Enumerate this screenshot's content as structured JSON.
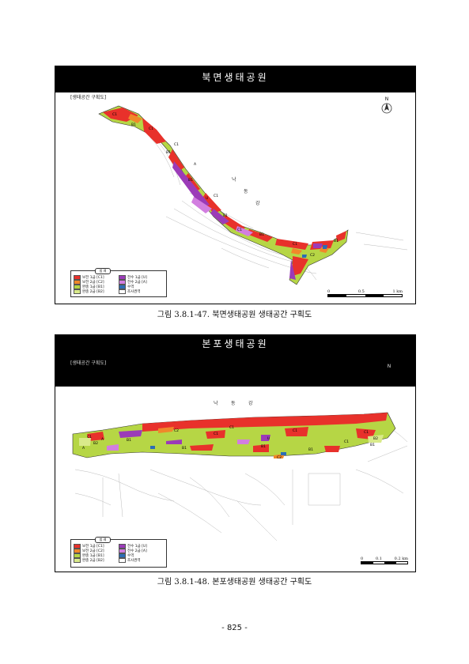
{
  "map1": {
    "header": "북면생태공원",
    "subtitle": "[생태공간 구획도]",
    "river_label": [
      "낙",
      "동",
      "강"
    ],
    "north_label": "N",
    "legend": {
      "title": "범 례",
      "items": [
        {
          "label": "보전 1급 [C1]",
          "color": "#e8312b"
        },
        {
          "label": "전수 1급 [U]",
          "color": "#9b3bb8"
        },
        {
          "label": "보전 2급 [C2]",
          "color": "#f0882a"
        },
        {
          "label": "전수 2급 [A]",
          "color": "#d27ee0"
        },
        {
          "label": "완충 1급 [B1]",
          "color": "#b6d645"
        },
        {
          "label": "수역",
          "color": "#2c6db5"
        },
        {
          "label": "완충 2급 [B2]",
          "color": "#d9ea8a"
        },
        {
          "label": "조사권역",
          "color": "#ffffff"
        }
      ]
    },
    "scale": {
      "labels": [
        "0",
        "0.5",
        "1 km"
      ]
    },
    "zone_labels": [
      "C1",
      "B1",
      "C1",
      "B1",
      "C1",
      "B1",
      "A",
      "U",
      "C1",
      "B1",
      "C1",
      "B1",
      "C1",
      "C2",
      "B1"
    ]
  },
  "caption1": "그림 3.8.1-47. 북면생태공원 생태공간 구획도",
  "map2": {
    "header": "본포생태공원",
    "subtitle": "[생태공간 구획도]",
    "river_label": [
      "낙",
      "동",
      "강"
    ],
    "north_label": "N",
    "legend": {
      "title": "범 례",
      "items": [
        {
          "label": "보전 1급 [C1]",
          "color": "#e8312b"
        },
        {
          "label": "전수 1급 [U]",
          "color": "#9b3bb8"
        },
        {
          "label": "보전 2급 [C2]",
          "color": "#f0882a"
        },
        {
          "label": "전수 2급 [A]",
          "color": "#d27ee0"
        },
        {
          "label": "완충 1급 [B1]",
          "color": "#b6d645"
        },
        {
          "label": "수역",
          "color": "#2c6db5"
        },
        {
          "label": "완충 2급 [B2]",
          "color": "#d9ea8a"
        },
        {
          "label": "조사권역",
          "color": "#ffffff"
        }
      ]
    },
    "scale": {
      "labels": [
        "0",
        "0.1",
        "0.2 km"
      ]
    },
    "zone_labels": [
      "C1",
      "B2",
      "A",
      "B1",
      "C2",
      "C1",
      "B1",
      "C1",
      "B1",
      "U",
      "C1",
      "B1",
      "C1",
      "B1",
      "B2",
      "C1",
      "A",
      "C2"
    ]
  },
  "caption2": "그림 3.8.1-48. 본포생태공원 생태공간 구획도",
  "page_number": "- 825 -"
}
